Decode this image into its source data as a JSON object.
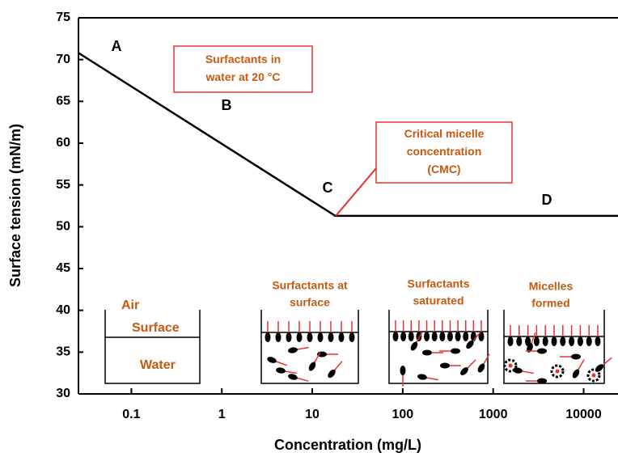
{
  "chart_data": {
    "type": "line",
    "x_label": "Concentration (mg/L)",
    "y_label": "Surface tension (mN/m)",
    "x_log": true,
    "xlim": [
      0.026,
      24000
    ],
    "ylim": [
      30,
      75
    ],
    "xticks": [
      0.1,
      1,
      10,
      100,
      1000,
      10000
    ],
    "yticks": [
      30,
      35,
      40,
      45,
      50,
      55,
      60,
      65,
      70,
      75
    ],
    "series": [
      {
        "color": "#000000",
        "x": [
          0.026,
          18,
          24000
        ],
        "values": [
          70.8,
          51.3,
          51.3
        ]
      }
    ],
    "point_labels": [
      "A",
      "B",
      "C",
      "D"
    ],
    "callouts": [
      {
        "lines": [
          "Surfactants in",
          "water at 20 °C"
        ]
      },
      {
        "lines": [
          "Critical micelle",
          "concentration",
          "(CMC)"
        ]
      }
    ],
    "beaker_labels": [
      "Air",
      "Surface",
      "Water"
    ],
    "panel_titles": [
      {
        "lines": [
          "Surfactants at",
          "surface"
        ]
      },
      {
        "lines": [
          "Surfactants",
          "saturated"
        ]
      },
      {
        "lines": [
          "Micelles",
          "formed"
        ]
      }
    ]
  }
}
